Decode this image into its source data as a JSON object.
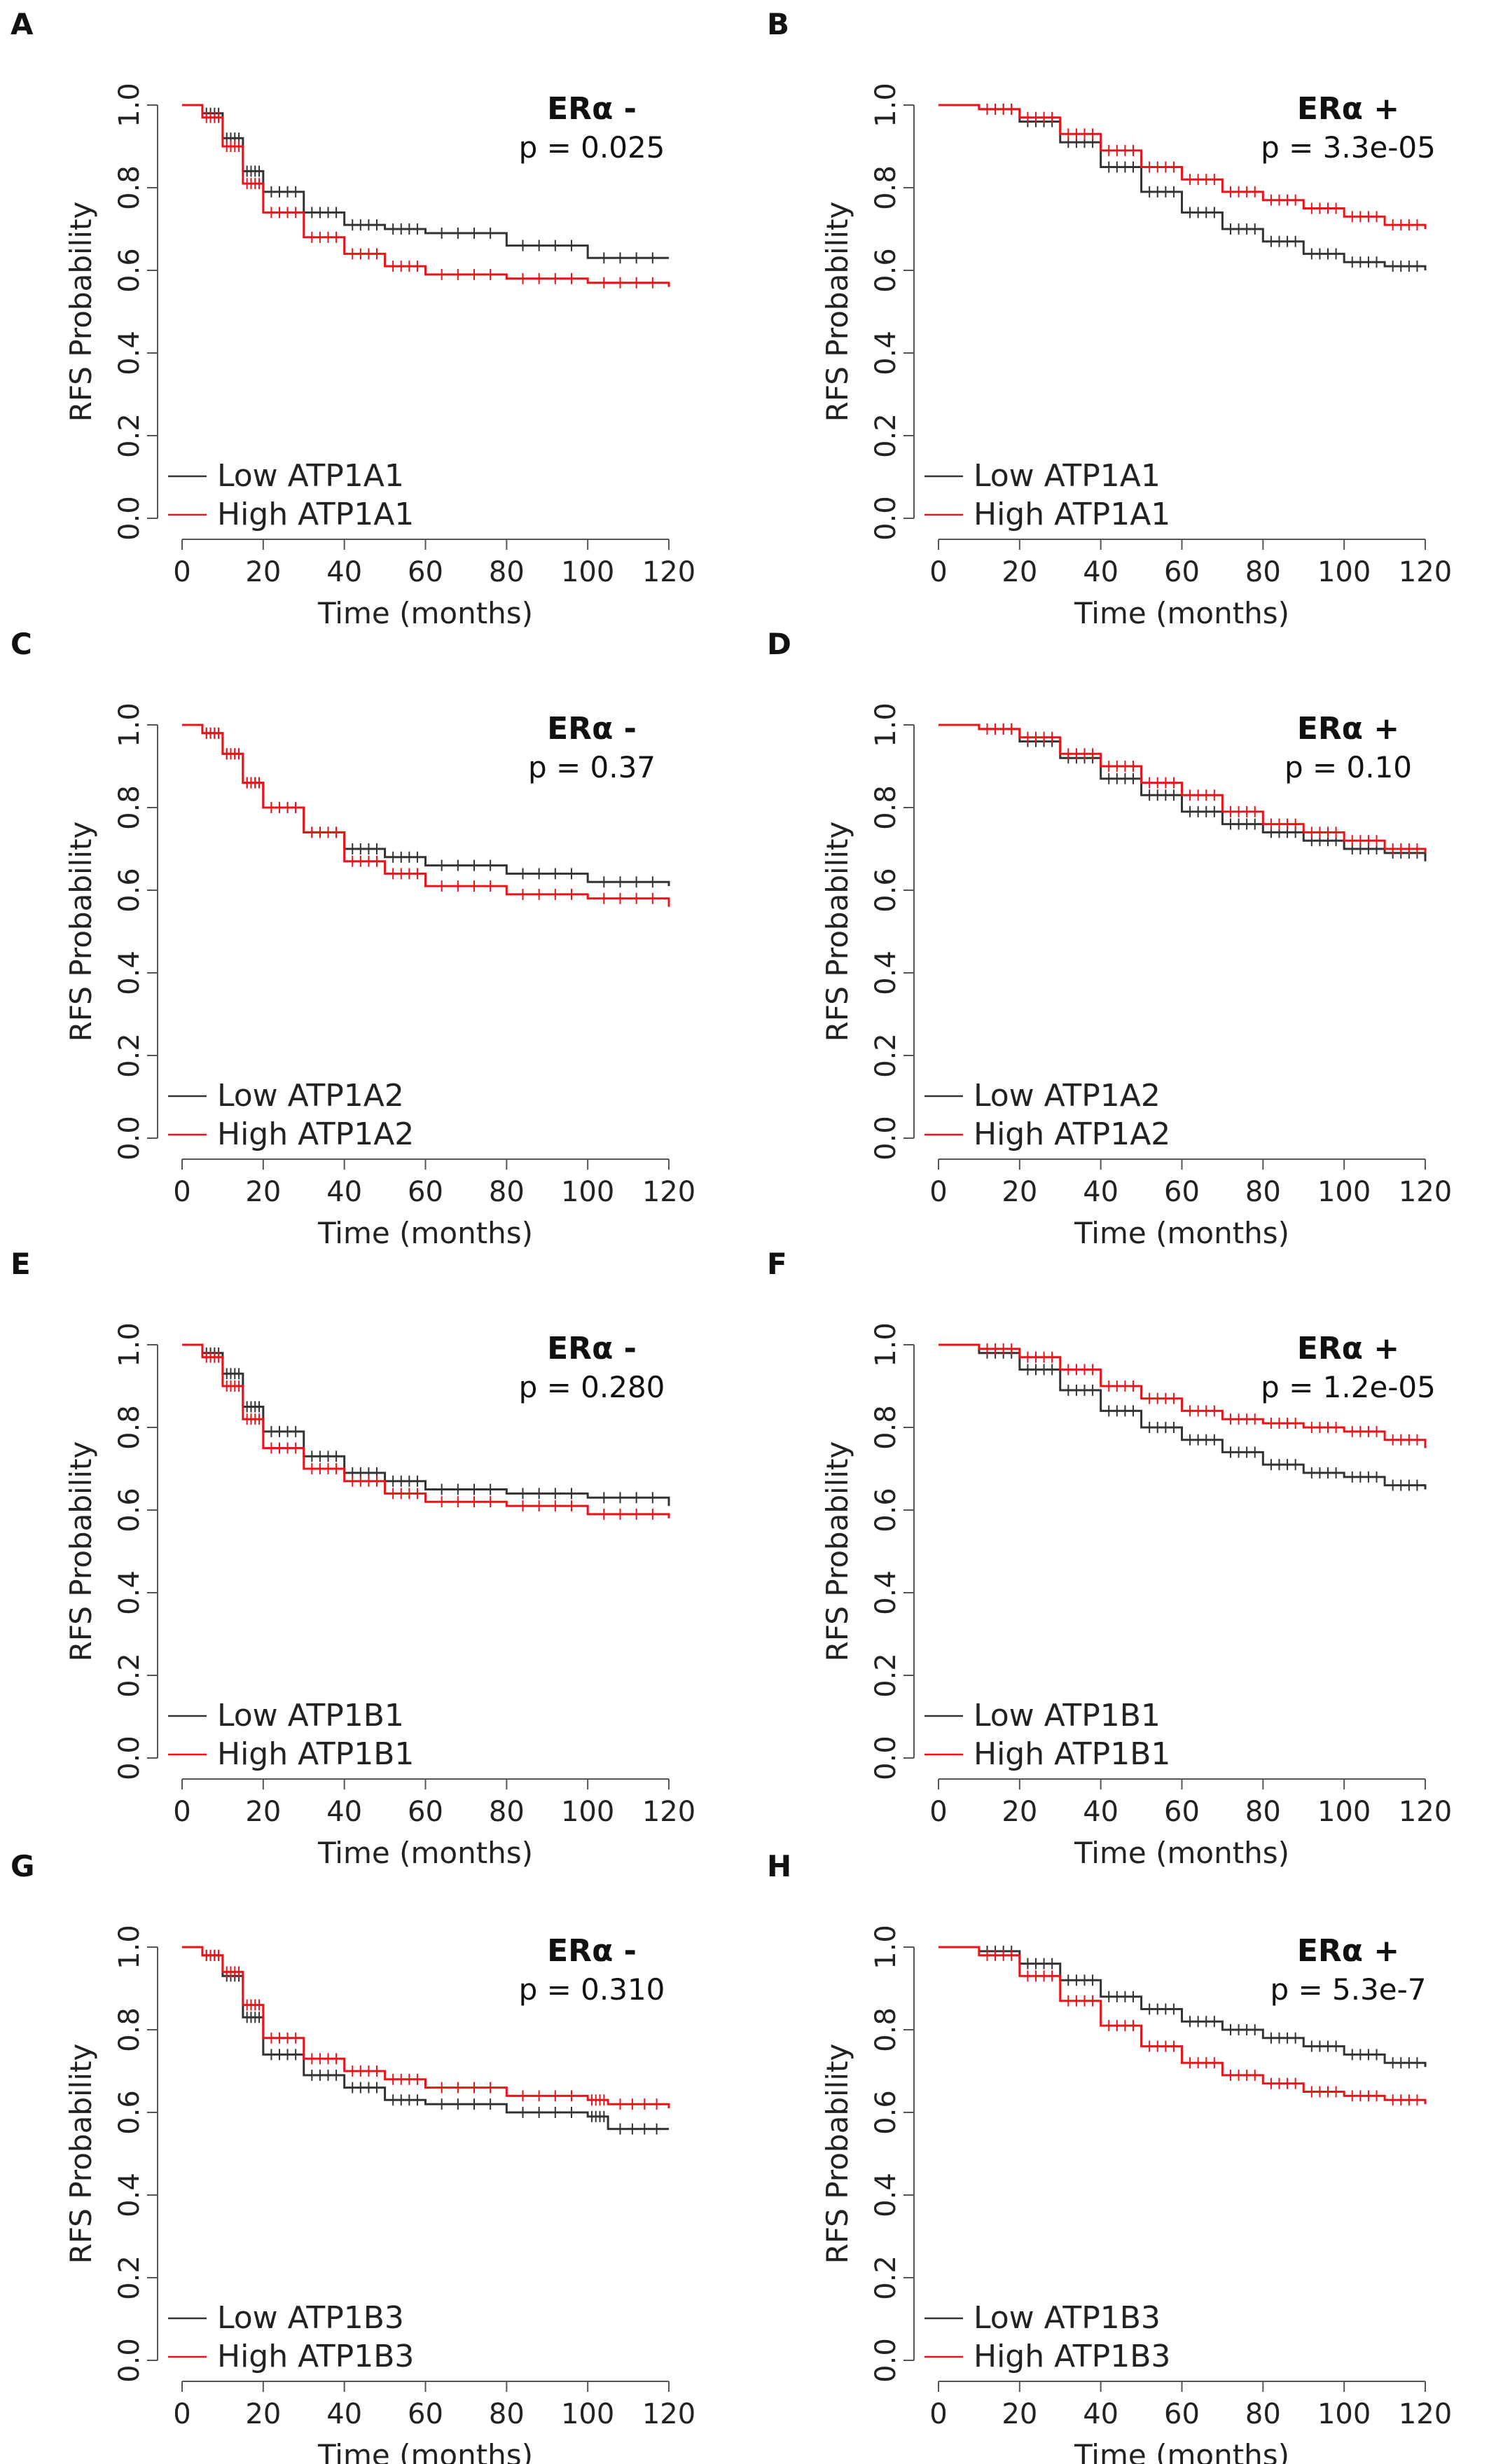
{
  "colors": {
    "low": "#333333",
    "high": "#e8141a",
    "axis": "#555555"
  },
  "chart_data": [
    {
      "panel": "A",
      "type": "line",
      "title": "ERα -",
      "pvalue": "p = 0.025",
      "xlabel": "Time (months)",
      "ylabel": "RFS Probability",
      "xlim": [
        0,
        120
      ],
      "ylim": [
        0,
        1
      ],
      "xticks": [
        "0",
        "20",
        "40",
        "60",
        "80",
        "100",
        "120"
      ],
      "yticks": [
        "0.0",
        "0.2",
        "0.4",
        "0.6",
        "0.8",
        "1.0"
      ],
      "x": [
        0,
        5,
        10,
        15,
        20,
        30,
        40,
        50,
        60,
        80,
        100,
        120
      ],
      "series": [
        {
          "name": "Low ATP1A1",
          "color": "#333333",
          "values": [
            1.0,
            0.98,
            0.92,
            0.84,
            0.79,
            0.74,
            0.71,
            0.7,
            0.69,
            0.66,
            0.63,
            0.63
          ]
        },
        {
          "name": "High ATP1A1",
          "color": "#e8141a",
          "values": [
            1.0,
            0.97,
            0.9,
            0.81,
            0.74,
            0.68,
            0.64,
            0.61,
            0.59,
            0.58,
            0.57,
            0.56
          ]
        }
      ]
    },
    {
      "panel": "B",
      "type": "line",
      "title": "ERα +",
      "pvalue": "p = 3.3e-05",
      "xlabel": "Time (months)",
      "ylabel": "RFS Probability",
      "xlim": [
        0,
        120
      ],
      "ylim": [
        0,
        1
      ],
      "xticks": [
        "0",
        "20",
        "40",
        "60",
        "80",
        "100",
        "120"
      ],
      "yticks": [
        "0.0",
        "0.2",
        "0.4",
        "0.6",
        "0.8",
        "1.0"
      ],
      "x": [
        0,
        10,
        20,
        30,
        40,
        50,
        60,
        70,
        80,
        90,
        100,
        110,
        120
      ],
      "series": [
        {
          "name": "Low ATP1A1",
          "color": "#333333",
          "values": [
            1.0,
            0.99,
            0.96,
            0.91,
            0.85,
            0.79,
            0.74,
            0.7,
            0.67,
            0.64,
            0.62,
            0.61,
            0.6
          ]
        },
        {
          "name": "High ATP1A1",
          "color": "#e8141a",
          "values": [
            1.0,
            0.99,
            0.97,
            0.93,
            0.89,
            0.85,
            0.82,
            0.79,
            0.77,
            0.75,
            0.73,
            0.71,
            0.7
          ]
        }
      ]
    },
    {
      "panel": "C",
      "type": "line",
      "title": "ERα -",
      "pvalue": "p = 0.37",
      "xlabel": "Time (months)",
      "ylabel": "RFS Probability",
      "xlim": [
        0,
        120
      ],
      "ylim": [
        0,
        1
      ],
      "xticks": [
        "0",
        "20",
        "40",
        "60",
        "80",
        "100",
        "120"
      ],
      "yticks": [
        "0.0",
        "0.2",
        "0.4",
        "0.6",
        "0.8",
        "1.0"
      ],
      "x": [
        0,
        5,
        10,
        15,
        20,
        30,
        40,
        50,
        60,
        80,
        100,
        120
      ],
      "series": [
        {
          "name": "Low ATP1A2",
          "color": "#333333",
          "values": [
            1.0,
            0.98,
            0.93,
            0.86,
            0.8,
            0.74,
            0.7,
            0.68,
            0.66,
            0.64,
            0.62,
            0.61
          ]
        },
        {
          "name": "High ATP1A2",
          "color": "#e8141a",
          "values": [
            1.0,
            0.98,
            0.93,
            0.86,
            0.8,
            0.74,
            0.67,
            0.64,
            0.61,
            0.59,
            0.58,
            0.56
          ]
        }
      ]
    },
    {
      "panel": "D",
      "type": "line",
      "title": "ERα +",
      "pvalue": "p = 0.10",
      "xlabel": "Time (months)",
      "ylabel": "RFS Probability",
      "xlim": [
        0,
        120
      ],
      "ylim": [
        0,
        1
      ],
      "xticks": [
        "0",
        "20",
        "40",
        "60",
        "80",
        "100",
        "120"
      ],
      "yticks": [
        "0.0",
        "0.2",
        "0.4",
        "0.6",
        "0.8",
        "1.0"
      ],
      "x": [
        0,
        10,
        20,
        30,
        40,
        50,
        60,
        70,
        80,
        90,
        100,
        110,
        120
      ],
      "series": [
        {
          "name": "Low ATP1A2",
          "color": "#333333",
          "values": [
            1.0,
            0.99,
            0.96,
            0.92,
            0.87,
            0.83,
            0.79,
            0.76,
            0.74,
            0.72,
            0.7,
            0.69,
            0.67
          ]
        },
        {
          "name": "High ATP1A2",
          "color": "#e8141a",
          "values": [
            1.0,
            0.99,
            0.97,
            0.93,
            0.9,
            0.86,
            0.83,
            0.79,
            0.76,
            0.74,
            0.72,
            0.7,
            0.69
          ]
        }
      ]
    },
    {
      "panel": "E",
      "type": "line",
      "title": "ERα -",
      "pvalue": "p = 0.280",
      "xlabel": "Time (months)",
      "ylabel": "RFS Probability",
      "xlim": [
        0,
        120
      ],
      "ylim": [
        0,
        1
      ],
      "xticks": [
        "0",
        "20",
        "40",
        "60",
        "80",
        "100",
        "120"
      ],
      "yticks": [
        "0.0",
        "0.2",
        "0.4",
        "0.6",
        "0.8",
        "1.0"
      ],
      "x": [
        0,
        5,
        10,
        15,
        20,
        30,
        40,
        50,
        60,
        80,
        100,
        120
      ],
      "series": [
        {
          "name": "Low ATP1B1",
          "color": "#333333",
          "values": [
            1.0,
            0.98,
            0.93,
            0.85,
            0.79,
            0.73,
            0.69,
            0.67,
            0.65,
            0.64,
            0.63,
            0.61
          ]
        },
        {
          "name": "High ATP1B1",
          "color": "#e8141a",
          "values": [
            1.0,
            0.97,
            0.9,
            0.82,
            0.75,
            0.7,
            0.67,
            0.64,
            0.62,
            0.61,
            0.59,
            0.58
          ]
        }
      ]
    },
    {
      "panel": "F",
      "type": "line",
      "title": "ERα +",
      "pvalue": "p = 1.2e-05",
      "xlabel": "Time (months)",
      "ylabel": "RFS Probability",
      "xlim": [
        0,
        120
      ],
      "ylim": [
        0,
        1
      ],
      "xticks": [
        "0",
        "20",
        "40",
        "60",
        "80",
        "100",
        "120"
      ],
      "yticks": [
        "0.0",
        "0.2",
        "0.4",
        "0.6",
        "0.8",
        "1.0"
      ],
      "x": [
        0,
        10,
        20,
        30,
        40,
        50,
        60,
        70,
        80,
        90,
        100,
        110,
        120
      ],
      "series": [
        {
          "name": "Low ATP1B1",
          "color": "#333333",
          "values": [
            1.0,
            0.98,
            0.94,
            0.89,
            0.84,
            0.8,
            0.77,
            0.74,
            0.71,
            0.69,
            0.68,
            0.66,
            0.65
          ]
        },
        {
          "name": "High ATP1B1",
          "color": "#e8141a",
          "values": [
            1.0,
            0.99,
            0.97,
            0.94,
            0.9,
            0.87,
            0.84,
            0.82,
            0.81,
            0.8,
            0.79,
            0.77,
            0.75
          ]
        }
      ]
    },
    {
      "panel": "G",
      "type": "line",
      "title": "ERα -",
      "pvalue": "p = 0.310",
      "xlabel": "Time (months)",
      "ylabel": "RFS Probability",
      "xlim": [
        0,
        120
      ],
      "ylim": [
        0,
        1
      ],
      "xticks": [
        "0",
        "20",
        "40",
        "60",
        "80",
        "100",
        "120"
      ],
      "yticks": [
        "0.0",
        "0.2",
        "0.4",
        "0.6",
        "0.8",
        "1.0"
      ],
      "x": [
        0,
        5,
        10,
        15,
        20,
        30,
        40,
        50,
        60,
        80,
        100,
        105,
        120
      ],
      "series": [
        {
          "name": "Low ATP1B3",
          "color": "#333333",
          "values": [
            1.0,
            0.98,
            0.93,
            0.83,
            0.74,
            0.69,
            0.66,
            0.63,
            0.62,
            0.6,
            0.59,
            0.56,
            0.56
          ]
        },
        {
          "name": "High ATP1B3",
          "color": "#e8141a",
          "values": [
            1.0,
            0.98,
            0.94,
            0.86,
            0.78,
            0.73,
            0.7,
            0.68,
            0.66,
            0.64,
            0.63,
            0.62,
            0.61
          ]
        }
      ]
    },
    {
      "panel": "H",
      "type": "line",
      "title": "ERα +",
      "pvalue": "p = 5.3e-7",
      "xlabel": "Time (months)",
      "ylabel": "RFS Probability",
      "xlim": [
        0,
        120
      ],
      "ylim": [
        0,
        1
      ],
      "xticks": [
        "0",
        "20",
        "40",
        "60",
        "80",
        "100",
        "120"
      ],
      "yticks": [
        "0.0",
        "0.2",
        "0.4",
        "0.6",
        "0.8",
        "1.0"
      ],
      "x": [
        0,
        10,
        20,
        30,
        40,
        50,
        60,
        70,
        80,
        90,
        100,
        110,
        120
      ],
      "series": [
        {
          "name": "Low ATP1B3",
          "color": "#333333",
          "values": [
            1.0,
            0.99,
            0.96,
            0.92,
            0.88,
            0.85,
            0.82,
            0.8,
            0.78,
            0.76,
            0.74,
            0.72,
            0.71
          ]
        },
        {
          "name": "High ATP1B3",
          "color": "#e8141a",
          "values": [
            1.0,
            0.98,
            0.93,
            0.87,
            0.81,
            0.76,
            0.72,
            0.69,
            0.67,
            0.65,
            0.64,
            0.63,
            0.62
          ]
        }
      ]
    }
  ]
}
